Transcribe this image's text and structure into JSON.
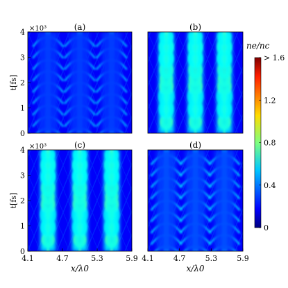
{
  "chart_data": [
    {
      "type": "heatmap",
      "title": "(a)",
      "exponent_label": "×10³",
      "xlabel": "",
      "ylabel": "t[fs]",
      "xlim": [
        4.1,
        5.9
      ],
      "ylim": [
        0,
        4
      ],
      "yticks": [
        "0",
        "1",
        "2",
        "3",
        "4"
      ],
      "xticks": [],
      "filament_x": [
        4.45,
        5.0,
        5.55
      ],
      "peak_value": 0.5,
      "description_pattern": "chevron"
    },
    {
      "type": "heatmap",
      "title": "(b)",
      "xlabel": "",
      "ylabel": "",
      "xlim": [
        4.1,
        5.9
      ],
      "ylim": [
        0,
        4
      ],
      "yticks": [],
      "xticks": [],
      "filament_x": [
        4.45,
        5.0,
        5.55
      ],
      "peak_value": 1.6,
      "description_pattern": "filament"
    },
    {
      "type": "heatmap",
      "title": "(c)",
      "exponent_label": "×10³",
      "xlabel": "x/λ0",
      "ylabel": "t[fs]",
      "xlim": [
        4.1,
        5.9
      ],
      "ylim": [
        0,
        4
      ],
      "yticks": [
        "0",
        "1",
        "2",
        "3",
        "4"
      ],
      "xticks": [
        "4.1",
        "4.7",
        "5.3",
        "5.9"
      ],
      "filament_x": [
        4.45,
        5.0,
        5.55
      ],
      "peak_value": 1.6,
      "description_pattern": "filament"
    },
    {
      "type": "heatmap",
      "title": "(d)",
      "xlabel": "x/λ0",
      "ylabel": "",
      "xlim": [
        4.1,
        5.9
      ],
      "ylim": [
        0,
        4
      ],
      "yticks": [],
      "xticks": [
        "4.1",
        "4.7",
        "5.3",
        "5.9"
      ],
      "filament_x": [
        4.45,
        5.0,
        5.55
      ],
      "peak_value": 0.55,
      "description_pattern": "chevron"
    }
  ],
  "colorbar": {
    "title": "ne/nc",
    "ticks": [
      "0",
      "0.4",
      "0.8",
      "1.2",
      "> 1.6"
    ],
    "tick_values": [
      0,
      0.4,
      0.8,
      1.2,
      1.6
    ],
    "range": [
      0,
      1.6
    ],
    "colormap": "jet"
  },
  "colors": {
    "low": "#00007f",
    "mid": "#00cfff",
    "high": "#ffff00",
    "max": "#7f0000"
  }
}
